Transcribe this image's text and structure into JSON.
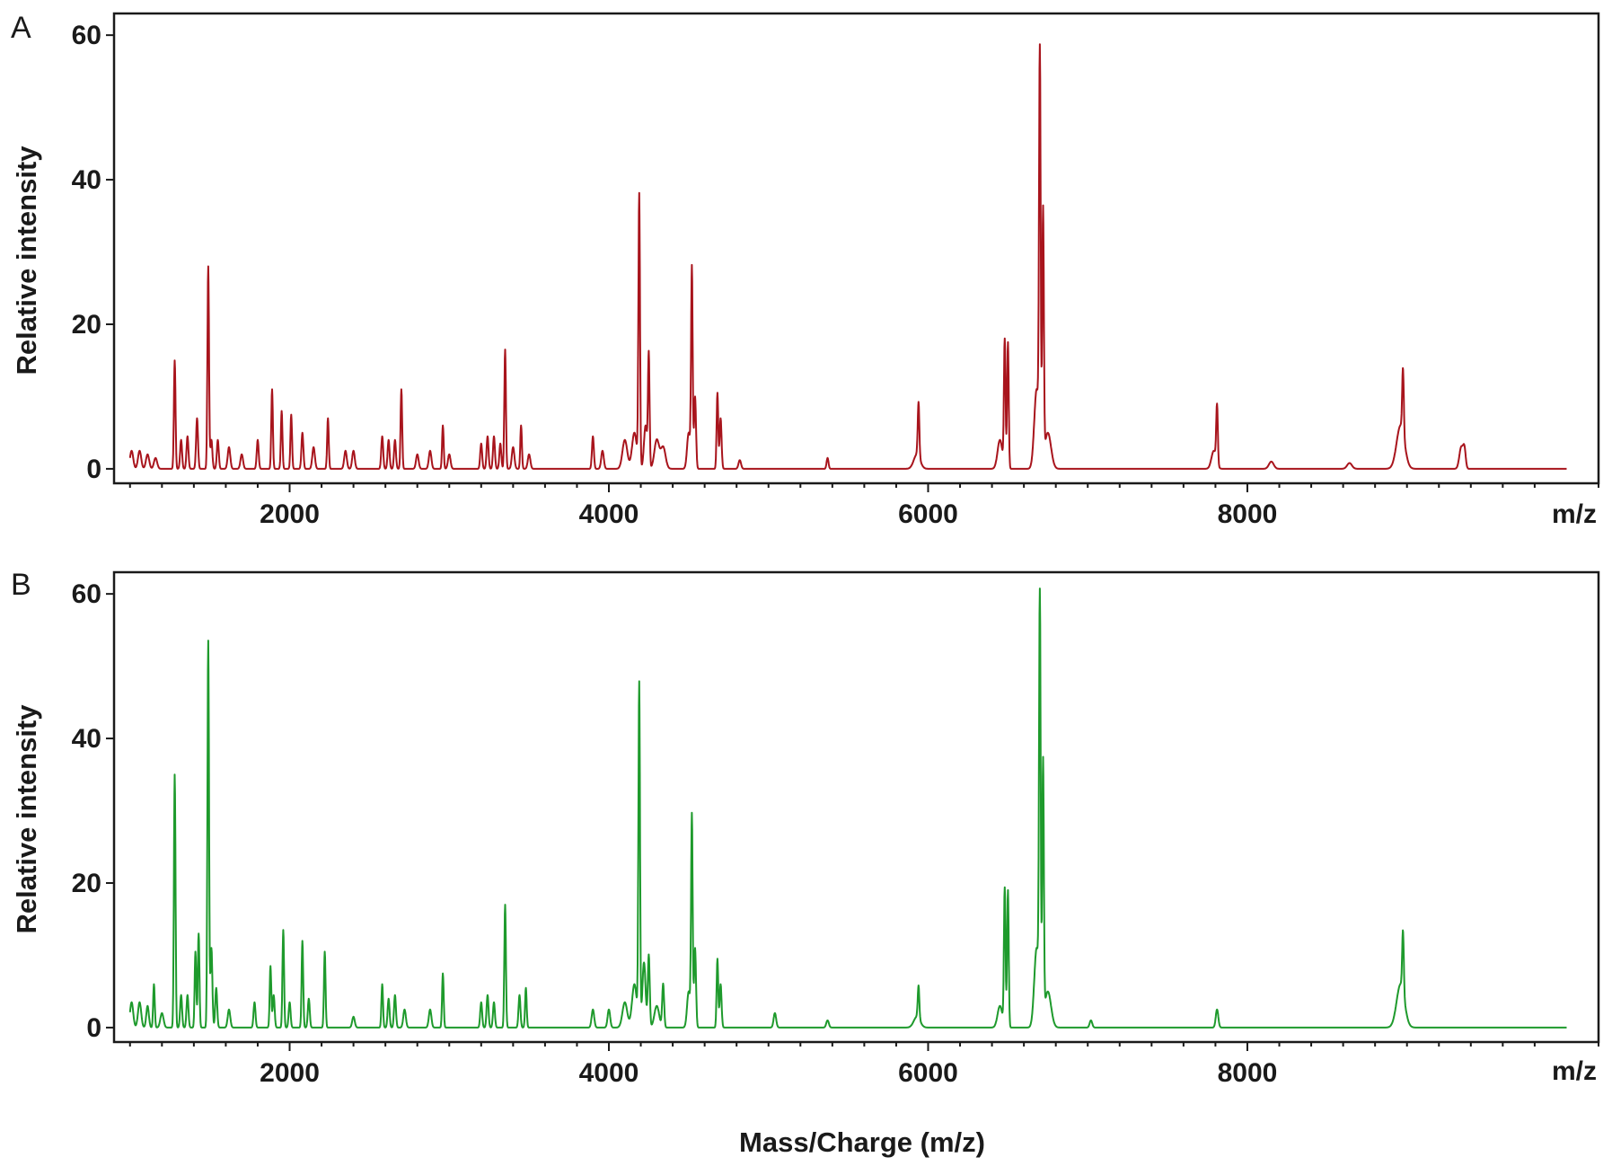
{
  "figure": {
    "xlabel": "Mass/Charge  (m/z)"
  },
  "chart_data": [
    {
      "type": "line",
      "panel_label": "A",
      "ylabel": "Relative intensity",
      "x_unit_label": "m/z",
      "xlim": [
        900,
        10200
      ],
      "ylim": [
        -2,
        63
      ],
      "x_ticks": [
        2000,
        4000,
        6000,
        8000
      ],
      "y_ticks": [
        0,
        20,
        40,
        60
      ],
      "x_tick_labels": [
        "2000",
        "4000",
        "6000",
        "8000"
      ],
      "y_tick_labels": [
        "0",
        "20",
        "40",
        "60"
      ],
      "color": "#a8141c",
      "series": [
        {
          "baseline": 0,
          "peaks": [
            [
              960,
              2.5,
              10
            ],
            [
              1010,
              2.5,
              10
            ],
            [
              1060,
              2.5,
              10
            ],
            [
              1110,
              2,
              10
            ],
            [
              1160,
              1.5,
              10
            ],
            [
              1280,
              15,
              5
            ],
            [
              1320,
              4,
              6
            ],
            [
              1360,
              4.5,
              6
            ],
            [
              1420,
              7,
              6
            ],
            [
              1490,
              28,
              5
            ],
            [
              1510,
              4,
              6
            ],
            [
              1550,
              4,
              6
            ],
            [
              1620,
              3,
              8
            ],
            [
              1700,
              2,
              8
            ],
            [
              1800,
              4,
              6
            ],
            [
              1890,
              11,
              5
            ],
            [
              1950,
              8,
              5
            ],
            [
              2010,
              7.5,
              5
            ],
            [
              2080,
              5,
              6
            ],
            [
              2150,
              3,
              8
            ],
            [
              2240,
              7,
              5
            ],
            [
              2350,
              2.5,
              8
            ],
            [
              2400,
              2.5,
              8
            ],
            [
              2580,
              4.5,
              6
            ],
            [
              2620,
              4,
              6
            ],
            [
              2660,
              4,
              6
            ],
            [
              2700,
              11,
              5
            ],
            [
              2800,
              2,
              8
            ],
            [
              2880,
              2.5,
              8
            ],
            [
              2960,
              6,
              5
            ],
            [
              3000,
              2,
              8
            ],
            [
              3200,
              3.5,
              6
            ],
            [
              3240,
              4.5,
              6
            ],
            [
              3280,
              4.5,
              6
            ],
            [
              3320,
              3.5,
              6
            ],
            [
              3350,
              16.5,
              5
            ],
            [
              3400,
              3,
              8
            ],
            [
              3450,
              6,
              5
            ],
            [
              3500,
              2,
              8
            ],
            [
              3900,
              4.5,
              6
            ],
            [
              3960,
              2.5,
              8
            ],
            [
              4100,
              4,
              15
            ],
            [
              4160,
              5,
              15
            ],
            [
              4190,
              37.5,
              5
            ],
            [
              4230,
              6,
              10
            ],
            [
              4250,
              15.5,
              5
            ],
            [
              4300,
              4,
              15
            ],
            [
              4340,
              3,
              15
            ],
            [
              4500,
              5,
              10
            ],
            [
              4520,
              27.5,
              5
            ],
            [
              4540,
              10,
              6
            ],
            [
              4680,
              10.5,
              5
            ],
            [
              4700,
              7,
              6
            ],
            [
              4820,
              1.2,
              8
            ],
            [
              5370,
              1.5,
              6
            ],
            [
              5940,
              7.5,
              5
            ],
            [
              5930,
              2,
              20
            ],
            [
              6450,
              4,
              15
            ],
            [
              6480,
              17.5,
              5
            ],
            [
              6500,
              17.5,
              5
            ],
            [
              6680,
              11,
              15
            ],
            [
              6700,
              54,
              5
            ],
            [
              6720,
              34.5,
              5
            ],
            [
              6750,
              5,
              20
            ],
            [
              7790,
              2.5,
              15
            ],
            [
              7810,
              8,
              5
            ],
            [
              8150,
              1,
              15
            ],
            [
              8640,
              0.8,
              15
            ],
            [
              8960,
              6,
              25
            ],
            [
              8975,
              9,
              5
            ],
            [
              9340,
              3,
              12
            ],
            [
              9360,
              2.5,
              8
            ]
          ]
        }
      ]
    },
    {
      "type": "line",
      "panel_label": "B",
      "ylabel": "Relative intensity",
      "x_unit_label": "m/z",
      "xlim": [
        900,
        10200
      ],
      "ylim": [
        -2,
        63
      ],
      "x_ticks": [
        2000,
        4000,
        6000,
        8000
      ],
      "y_ticks": [
        0,
        20,
        40,
        60
      ],
      "x_tick_labels": [
        "2000",
        "4000",
        "6000",
        "8000"
      ],
      "y_tick_labels": [
        "0",
        "20",
        "40",
        "60"
      ],
      "color": "#1e9a2c",
      "series": [
        {
          "baseline": 0,
          "peaks": [
            [
              960,
              2.5,
              10
            ],
            [
              1010,
              3.5,
              10
            ],
            [
              1060,
              3.5,
              10
            ],
            [
              1110,
              3,
              8
            ],
            [
              1150,
              6,
              5
            ],
            [
              1200,
              2,
              10
            ],
            [
              1280,
              35,
              5
            ],
            [
              1320,
              4.5,
              6
            ],
            [
              1360,
              4.5,
              6
            ],
            [
              1410,
              10.5,
              5
            ],
            [
              1430,
              13,
              5
            ],
            [
              1490,
              53.5,
              5
            ],
            [
              1510,
              11,
              6
            ],
            [
              1540,
              5.5,
              6
            ],
            [
              1620,
              2.5,
              8
            ],
            [
              1780,
              3.5,
              6
            ],
            [
              1880,
              8.5,
              5
            ],
            [
              1900,
              4.5,
              6
            ],
            [
              1960,
              13.5,
              5
            ],
            [
              2000,
              3.5,
              6
            ],
            [
              2080,
              12,
              5
            ],
            [
              2120,
              4,
              6
            ],
            [
              2220,
              10.5,
              5
            ],
            [
              2400,
              1.5,
              8
            ],
            [
              2580,
              6,
              5
            ],
            [
              2620,
              4,
              6
            ],
            [
              2660,
              4.5,
              6
            ],
            [
              2720,
              2.5,
              8
            ],
            [
              2880,
              2.5,
              8
            ],
            [
              2960,
              7.5,
              5
            ],
            [
              3200,
              3.5,
              6
            ],
            [
              3240,
              4.5,
              6
            ],
            [
              3280,
              3.5,
              6
            ],
            [
              3350,
              17,
              5
            ],
            [
              3440,
              4.5,
              6
            ],
            [
              3480,
              5.5,
              5
            ],
            [
              3900,
              2.5,
              8
            ],
            [
              4000,
              2.5,
              8
            ],
            [
              4100,
              3.5,
              15
            ],
            [
              4160,
              6,
              15
            ],
            [
              4190,
              47,
              5
            ],
            [
              4220,
              9,
              10
            ],
            [
              4250,
              10,
              6
            ],
            [
              4300,
              3,
              15
            ],
            [
              4340,
              6,
              6
            ],
            [
              4500,
              5,
              10
            ],
            [
              4520,
              29,
              5
            ],
            [
              4540,
              11,
              6
            ],
            [
              4680,
              9.5,
              5
            ],
            [
              4700,
              6,
              6
            ],
            [
              5040,
              2,
              8
            ],
            [
              5370,
              1,
              8
            ],
            [
              5940,
              4.5,
              5
            ],
            [
              5930,
              1.5,
              20
            ],
            [
              6450,
              3,
              15
            ],
            [
              6480,
              19,
              5
            ],
            [
              6500,
              19,
              5
            ],
            [
              6680,
              11,
              15
            ],
            [
              6700,
              56,
              5
            ],
            [
              6720,
              35.5,
              5
            ],
            [
              6750,
              5,
              20
            ],
            [
              7020,
              1,
              8
            ],
            [
              7810,
              2.5,
              8
            ],
            [
              8960,
              6,
              25
            ],
            [
              8975,
              8.5,
              5
            ]
          ]
        }
      ]
    }
  ]
}
